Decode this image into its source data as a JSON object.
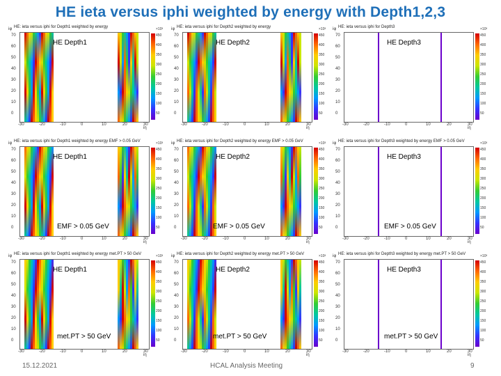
{
  "slide": {
    "title": "HE ieta versus iphi weighted by energy with Depth1,2,3",
    "date": "15.12.2021",
    "meeting": "HCAL Analysis Meeting",
    "page": "9"
  },
  "rows": [
    {
      "panels": [
        {
          "plot_title": "HE: ieta versus iphi for Depth1 weighted by energy",
          "label": "HE Depth1",
          "cut": ""
        },
        {
          "plot_title": "HE: ieta versus iphi for Depth2 weighted by energy",
          "label": "HE Depth2",
          "cut": ""
        },
        {
          "plot_title": "HE: ieta versus iphi for Depth3",
          "label": "HE Depth3",
          "cut": ""
        }
      ]
    },
    {
      "panels": [
        {
          "plot_title": "HE: ieta versus iphi for Depth1 weighted by energy EMF > 0.05 GeV",
          "label": "HE Depth1",
          "cut": "EMF > 0.05 GeV"
        },
        {
          "plot_title": "HE: ieta versus iphi for Depth2 weighted by energy EMF > 0.05 GeV",
          "label": "HE Depth2",
          "cut": "EMF > 0.05 GeV"
        },
        {
          "plot_title": "HE: ieta versus iphi for Depth3 weighted by energy EMF > 0.05 GeV",
          "label": "HE Depth3",
          "cut": "EMF > 0.05 GeV"
        }
      ]
    },
    {
      "panels": [
        {
          "plot_title": "HE: ieta versus iphi for Depth1 weighted by energy met.PT > 50 GeV",
          "label": "HE Depth1",
          "cut": "met.PT > 50 GeV"
        },
        {
          "plot_title": "HE: ieta versus iphi for Depth2 weighted by energy met.PT > 50 GeV",
          "label": "HE Depth2",
          "cut": "met.PT > 50 GeV"
        },
        {
          "plot_title": "HE: ieta versus iphi for Depth3 weighted by energy met.PT > 50 GeV",
          "label": "HE Depth3",
          "cut": "met.PT > 50 GeV"
        }
      ]
    }
  ],
  "axes": {
    "y_ticks": [
      "70",
      "60",
      "50",
      "40",
      "30",
      "20",
      "10",
      "0"
    ],
    "x_ticks": [
      "-30",
      "-20",
      "-10",
      "0",
      "10",
      "20",
      "30"
    ],
    "x_title": "iη",
    "y_title": "iφ",
    "z_ticks": [
      "450",
      "400",
      "350",
      "300",
      "250",
      "200",
      "150",
      "100",
      "50"
    ],
    "z_exponent": "×10³"
  },
  "colors": {
    "title": "#1e6fb8",
    "high": "#d40000",
    "mid": "#33cc33",
    "low": "#3333ff",
    "depth3_band": "#6a00cc"
  }
}
